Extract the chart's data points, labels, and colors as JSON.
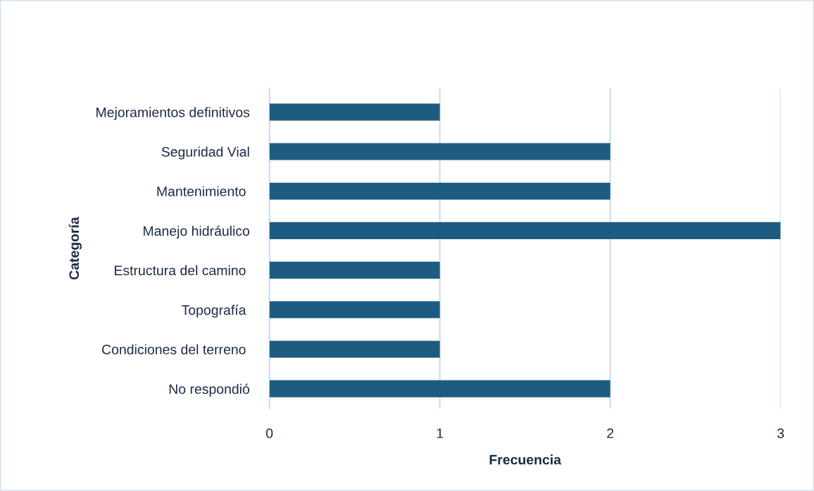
{
  "chart_data": {
    "type": "bar",
    "orientation": "horizontal",
    "categories": [
      "Mejoramientos definitivos",
      "Seguridad Vial",
      "Mantenimiento ",
      "Manejo hidráulico",
      "Estructura del camino ",
      "Topografía ",
      "Condiciones del terreno ",
      "No respondió"
    ],
    "values": [
      1,
      2,
      2,
      3,
      1,
      1,
      1,
      2
    ],
    "color": "#1d5c80",
    "xlabel": "Frecuencia",
    "ylabel": "Categoría",
    "xlim": [
      0,
      3
    ],
    "xticks": [
      0,
      1,
      2,
      3
    ],
    "grid": "x"
  }
}
